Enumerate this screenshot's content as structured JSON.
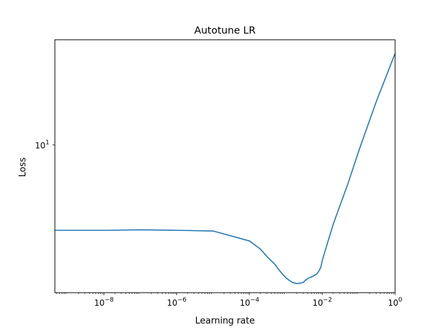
{
  "chart_data": {
    "type": "line",
    "title": "Autotune LR",
    "xlabel": "Learning rate",
    "ylabel": "Loss",
    "xscale": "log",
    "yscale": "log",
    "xlim": [
      4.5e-10,
      1
    ],
    "ylim": [
      2.35,
      28
    ],
    "grid": false,
    "legend": "none",
    "x_ticks": [
      {
        "value": 1e-08,
        "base": "10",
        "exp": "−8"
      },
      {
        "value": 1e-06,
        "base": "10",
        "exp": "−6"
      },
      {
        "value": 0.0001,
        "base": "10",
        "exp": "−4"
      },
      {
        "value": 0.01,
        "base": "10",
        "exp": "−2"
      },
      {
        "value": 1,
        "base": "10",
        "exp": "0"
      }
    ],
    "y_ticks": [
      {
        "value": 10,
        "base": "10",
        "exp": "1"
      }
    ],
    "series": [
      {
        "color": "#1f77b4",
        "x": [
          4.5e-10,
          1e-09,
          1e-08,
          1e-07,
          1e-06,
          1e-05,
          0.0001,
          0.0002,
          0.0003,
          0.0005,
          0.0006,
          0.0008,
          0.001,
          0.0012,
          0.0015,
          0.0018,
          0.002,
          0.0025,
          0.003,
          0.0035,
          0.004,
          0.005,
          0.006,
          0.007,
          0.008,
          0.009,
          0.01,
          0.012,
          0.02,
          0.05,
          0.1,
          0.3,
          1
        ],
        "y": [
          4.33,
          4.33,
          4.33,
          4.35,
          4.33,
          4.3,
          3.9,
          3.6,
          3.35,
          3.1,
          2.98,
          2.82,
          2.72,
          2.66,
          2.6,
          2.58,
          2.57,
          2.58,
          2.6,
          2.66,
          2.7,
          2.74,
          2.78,
          2.82,
          2.9,
          3.0,
          3.22,
          3.55,
          4.6,
          6.8,
          9.4,
          15.2,
          24.5
        ]
      }
    ]
  }
}
